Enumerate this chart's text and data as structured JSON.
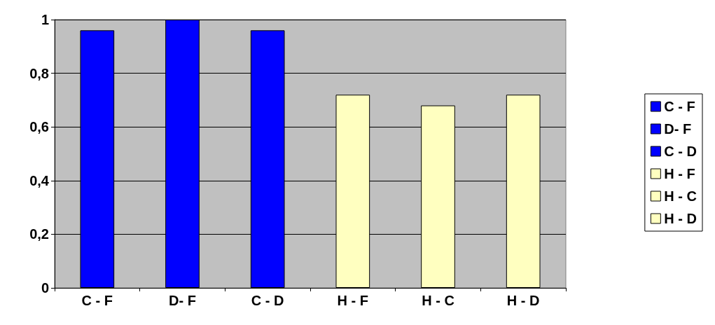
{
  "chart_data": {
    "type": "bar",
    "categories": [
      "C - F",
      "D- F",
      "C - D",
      "H - F",
      "H - C",
      "H - D"
    ],
    "series": [
      {
        "name": "C - F",
        "color": "#0000ff",
        "values": [
          0.96,
          null,
          null,
          null,
          null,
          null
        ]
      },
      {
        "name": "D- F",
        "color": "#0000ff",
        "values": [
          null,
          1.0,
          null,
          null,
          null,
          null
        ]
      },
      {
        "name": "C - D",
        "color": "#0000ff",
        "values": [
          null,
          null,
          0.96,
          null,
          null,
          null
        ]
      },
      {
        "name": "H - F",
        "color": "#ffffc0",
        "values": [
          null,
          null,
          null,
          0.72,
          null,
          null
        ]
      },
      {
        "name": "H - C",
        "color": "#ffffc0",
        "values": [
          null,
          null,
          null,
          null,
          0.68,
          null
        ]
      },
      {
        "name": "H - D",
        "color": "#ffffc0",
        "values": [
          null,
          null,
          null,
          null,
          null,
          0.72
        ]
      }
    ],
    "ylim": [
      0,
      1
    ],
    "yticks": [
      0,
      {
        "value": 0.2,
        "label": "0,2"
      },
      {
        "value": 0.4,
        "label": "0,4"
      },
      {
        "value": 0.6,
        "label": "0,6"
      },
      {
        "value": 0.8,
        "label": "0,8"
      },
      1
    ],
    "grid": "y",
    "legend": "right"
  }
}
